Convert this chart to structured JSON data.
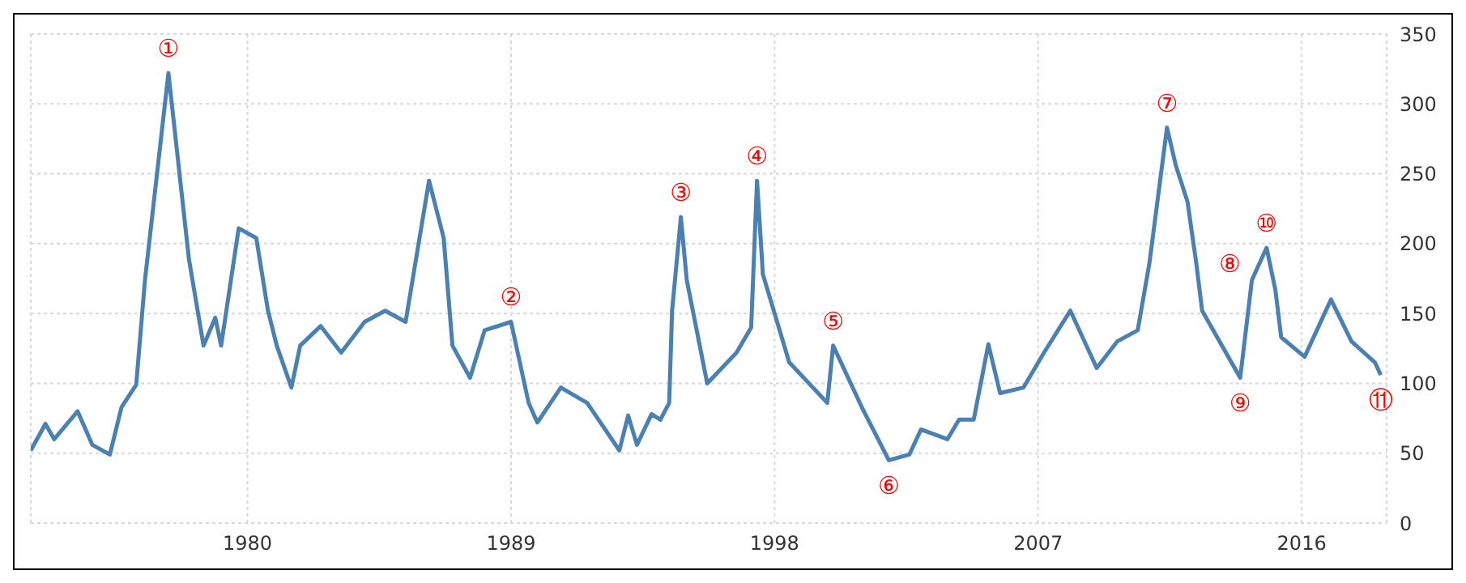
{
  "chart_data": {
    "type": "line",
    "x": [
      1972.6,
      1973.1,
      1973.4,
      1974.2,
      1974.7,
      1975.3,
      1975.7,
      1976.2,
      1976.5,
      1977.3,
      1978.0,
      1978.5,
      1978.9,
      1979.1,
      1979.7,
      1980.3,
      1980.7,
      1981.0,
      1981.5,
      1981.8,
      1982.5,
      1983.2,
      1984.0,
      1984.7,
      1985.4,
      1986.2,
      1986.7,
      1987.0,
      1987.6,
      1988.1,
      1989.0,
      1989.6,
      1989.9,
      1990.7,
      1991.6,
      1992.7,
      1993.0,
      1993.3,
      1993.8,
      1994.1,
      1994.4,
      1994.5,
      1994.8,
      1995.0,
      1995.7,
      1996.7,
      1997.2,
      1997.4,
      1997.6,
      1998.5,
      1999.8,
      2000.0,
      2001.0,
      2001.9,
      2002.6,
      2003.0,
      2003.9,
      2004.3,
      2004.8,
      2005.3,
      2005.7,
      2006.5,
      2007.2,
      2008.1,
      2009.0,
      2009.7,
      2010.4,
      2010.8,
      2011.4,
      2011.7,
      2012.1,
      2012.4,
      2012.6,
      2013.9,
      2014.3,
      2014.8,
      2015.1,
      2015.3,
      2016.1,
      2017.0,
      2017.7,
      2018.5,
      2018.7
    ],
    "series": [
      {
        "color": "#4a80b2",
        "values": [
          52,
          71,
          60,
          80,
          56,
          49,
          83,
          99,
          174,
          322,
          189,
          127,
          147,
          127,
          211,
          204,
          152,
          127,
          97,
          127,
          141,
          122,
          144,
          152,
          144,
          245,
          204,
          127,
          104,
          138,
          144,
          86,
          72,
          97,
          86,
          52,
          77,
          56,
          78,
          74,
          86,
          152,
          219,
          174,
          100,
          122,
          140,
          245,
          178,
          115,
          86,
          127,
          82,
          45,
          49,
          67,
          60,
          74,
          74,
          128,
          93,
          97,
          122,
          152,
          111,
          130,
          138,
          186,
          283,
          256,
          230,
          186,
          152,
          104,
          174,
          197,
          167,
          133,
          119,
          160,
          130,
          115,
          106
        ]
      }
    ],
    "xlim": [
      1972.6,
      2018.9
    ],
    "xticks": [
      1980,
      1989,
      1998,
      2007,
      2016
    ],
    "ylim": [
      0,
      350
    ],
    "yticks": [
      0,
      50,
      100,
      150,
      200,
      250,
      300,
      350
    ],
    "grid": true,
    "marker": "none",
    "line_style": "solid",
    "annotations": [
      {
        "text": "①",
        "x": 1977.3,
        "y": 322
      },
      {
        "text": "②",
        "x": 1989.0,
        "y": 144
      },
      {
        "text": "③",
        "x": 1994.8,
        "y": 219
      },
      {
        "text": "④",
        "x": 1997.4,
        "y": 245
      },
      {
        "text": "⑤",
        "x": 2000.0,
        "y": 127
      },
      {
        "text": "⑥",
        "x": 2001.9,
        "y": 45
      },
      {
        "text": "⑦",
        "x": 2011.4,
        "y": 283
      },
      {
        "text": "⑧",
        "x": 2012.4,
        "y": 186
      },
      {
        "text": "⑨",
        "x": 2013.9,
        "y": 104
      },
      {
        "text": "⑩",
        "x": 2014.8,
        "y": 197
      },
      {
        "text": "⑪",
        "x": 2018.7,
        "y": 106
      }
    ]
  }
}
